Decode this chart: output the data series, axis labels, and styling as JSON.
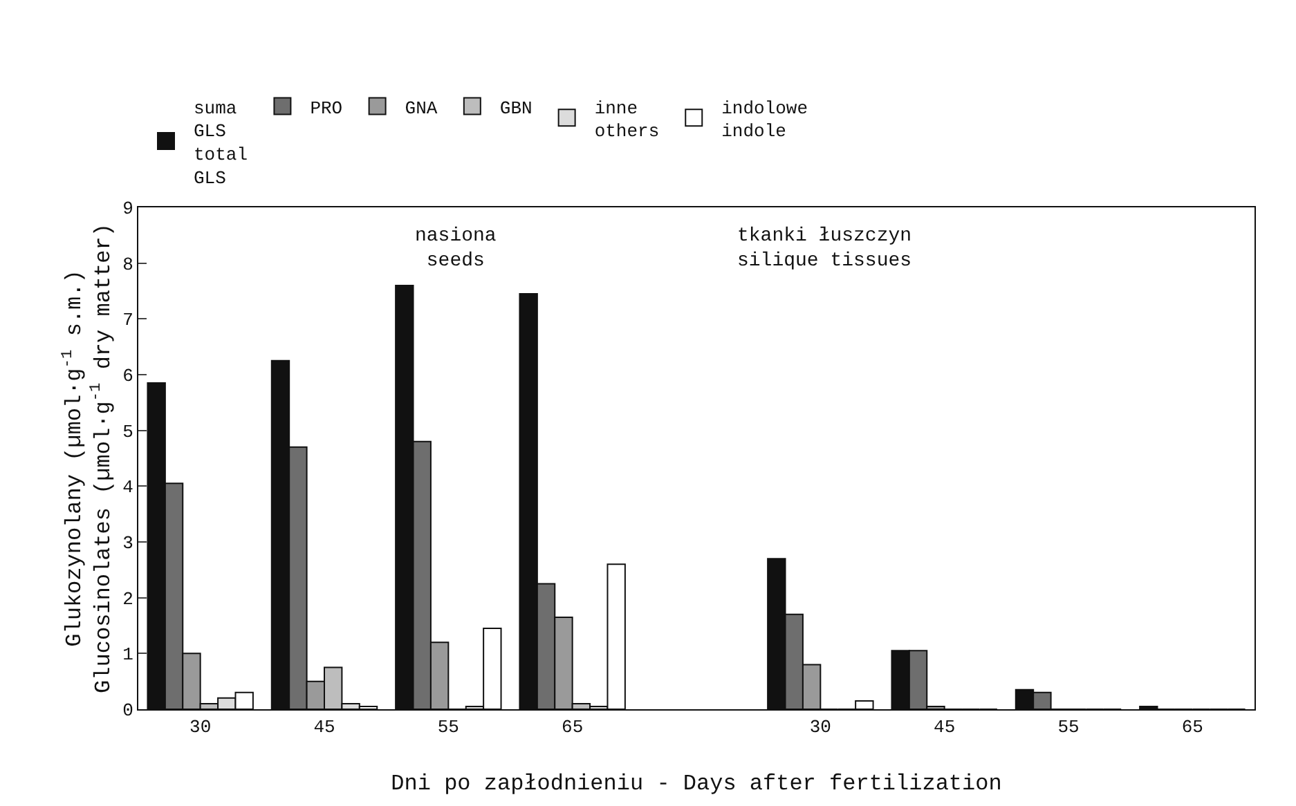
{
  "chart_data": {
    "type": "bar",
    "categories": [
      "30",
      "45",
      "55",
      "65",
      null,
      "30",
      "45",
      "55",
      "65"
    ],
    "series": [
      {
        "name": "suma\nGLS\ntotal\nGLS",
        "color": "#111111",
        "values": [
          5.85,
          6.25,
          7.6,
          7.45,
          null,
          2.7,
          1.05,
          0.35,
          0.05
        ]
      },
      {
        "name": "PRO",
        "color": "#6e6e6e",
        "values": [
          4.05,
          4.7,
          4.8,
          2.25,
          null,
          1.7,
          1.05,
          0.3,
          0
        ]
      },
      {
        "name": "GNA",
        "color": "#9a9a9a",
        "values": [
          1.0,
          0.5,
          1.2,
          1.65,
          null,
          0.8,
          0.05,
          0,
          0
        ]
      },
      {
        "name": "GBN",
        "color": "#bdbdbd",
        "values": [
          0.1,
          0.75,
          0,
          0.1,
          null,
          0,
          0,
          0,
          0
        ]
      },
      {
        "name": "inne\nothers",
        "color": "#dcdcdc",
        "values": [
          0.2,
          0.1,
          0.05,
          0.05,
          null,
          0,
          0,
          0,
          0
        ]
      },
      {
        "name": "indolowe\nindole",
        "color": "#ffffff",
        "values": [
          0.3,
          0.05,
          1.45,
          2.6,
          null,
          0.15,
          0,
          0,
          0
        ]
      }
    ],
    "xlabel": "Dni po zapłodnieniu - Days after fertilization",
    "ylabel": "Glukozynolany (µmol·g$^{-1}$ s.m.)\nGlucosinolates (µmol·g$^{-1}$ dry matter)",
    "annotations": [
      "nasiona\nseeds",
      "tkanki łuszczyn\nsilique tissues"
    ],
    "ylim": [
      0,
      9
    ],
    "yticks": [
      0,
      1,
      2,
      3,
      4,
      5,
      6,
      7,
      8,
      9
    ],
    "grid": false,
    "legend": "top"
  }
}
